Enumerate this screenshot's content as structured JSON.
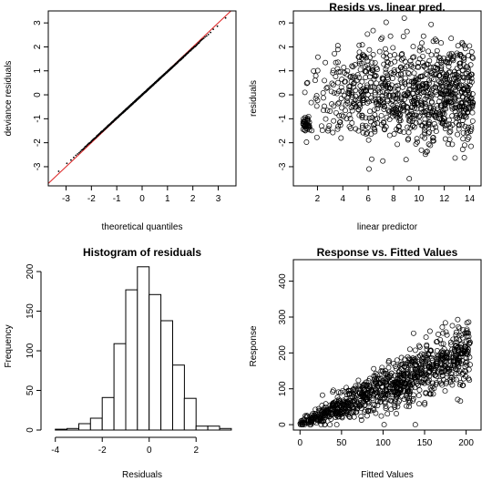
{
  "colors": {
    "background": "#ffffff",
    "ink": "#000000",
    "reference_line": "#dd2222"
  },
  "chart_data": [
    {
      "type": "scatter",
      "title": "",
      "xlabel": "theoretical quantiles",
      "ylabel": "deviance residuals",
      "xlim": [
        -3.7,
        3.7
      ],
      "ylim": [
        -3.8,
        3.5
      ],
      "xticks": [
        -3,
        -2,
        -1,
        0,
        1,
        2,
        3
      ],
      "yticks": [
        -3,
        -2,
        -1,
        0,
        1,
        2,
        3
      ],
      "reference_line": {
        "slope": 1,
        "intercept": 0
      },
      "points": {
        "n": 1000,
        "distribution": "sorted normal quantiles vs residuals"
      }
    },
    {
      "type": "scatter",
      "title": "Resids vs. linear pred.",
      "xlabel": "linear predictor",
      "ylabel": "residuals",
      "xlim": [
        0.1,
        14.9
      ],
      "ylim": [
        -3.8,
        3.5
      ],
      "xticks": [
        2,
        4,
        6,
        8,
        10,
        12,
        14
      ],
      "yticks": [
        -3,
        -2,
        -1,
        0,
        1,
        2,
        3
      ],
      "points": {
        "n": 1000,
        "x_range": [
          0.8,
          14.3
        ],
        "y_range": [
          -3.5,
          3.2
        ]
      }
    },
    {
      "type": "bar",
      "title": "Histogram of residuals",
      "xlabel": "Residuals",
      "ylabel": "Frequency",
      "xlim": [
        -4.3,
        3.7
      ],
      "ylim": [
        0,
        215
      ],
      "xticks": [
        -4,
        -2,
        0,
        2
      ],
      "yticks": [
        0,
        50,
        100,
        150,
        200
      ],
      "bin_width": 0.5,
      "bin_starts": [
        -4.0,
        -3.5,
        -3.0,
        -2.5,
        -2.0,
        -1.5,
        -1.0,
        -0.5,
        0.0,
        0.5,
        1.0,
        1.5,
        2.0,
        2.5,
        3.0
      ],
      "values": [
        1,
        2,
        8,
        15,
        41,
        109,
        177,
        206,
        171,
        138,
        82,
        40,
        5,
        5,
        2
      ]
    },
    {
      "type": "scatter",
      "title": "Response vs. Fitted Values",
      "xlabel": "Fitted Values",
      "ylabel": "Response",
      "xlim": [
        -8,
        218
      ],
      "ylim": [
        -15,
        460
      ],
      "xticks": [
        0,
        50,
        100,
        150,
        200
      ],
      "yticks": [
        0,
        100,
        200,
        300,
        400
      ],
      "points": {
        "n": 1000,
        "x_range": [
          0,
          205
        ],
        "y_range": [
          0,
          440
        ]
      }
    }
  ]
}
